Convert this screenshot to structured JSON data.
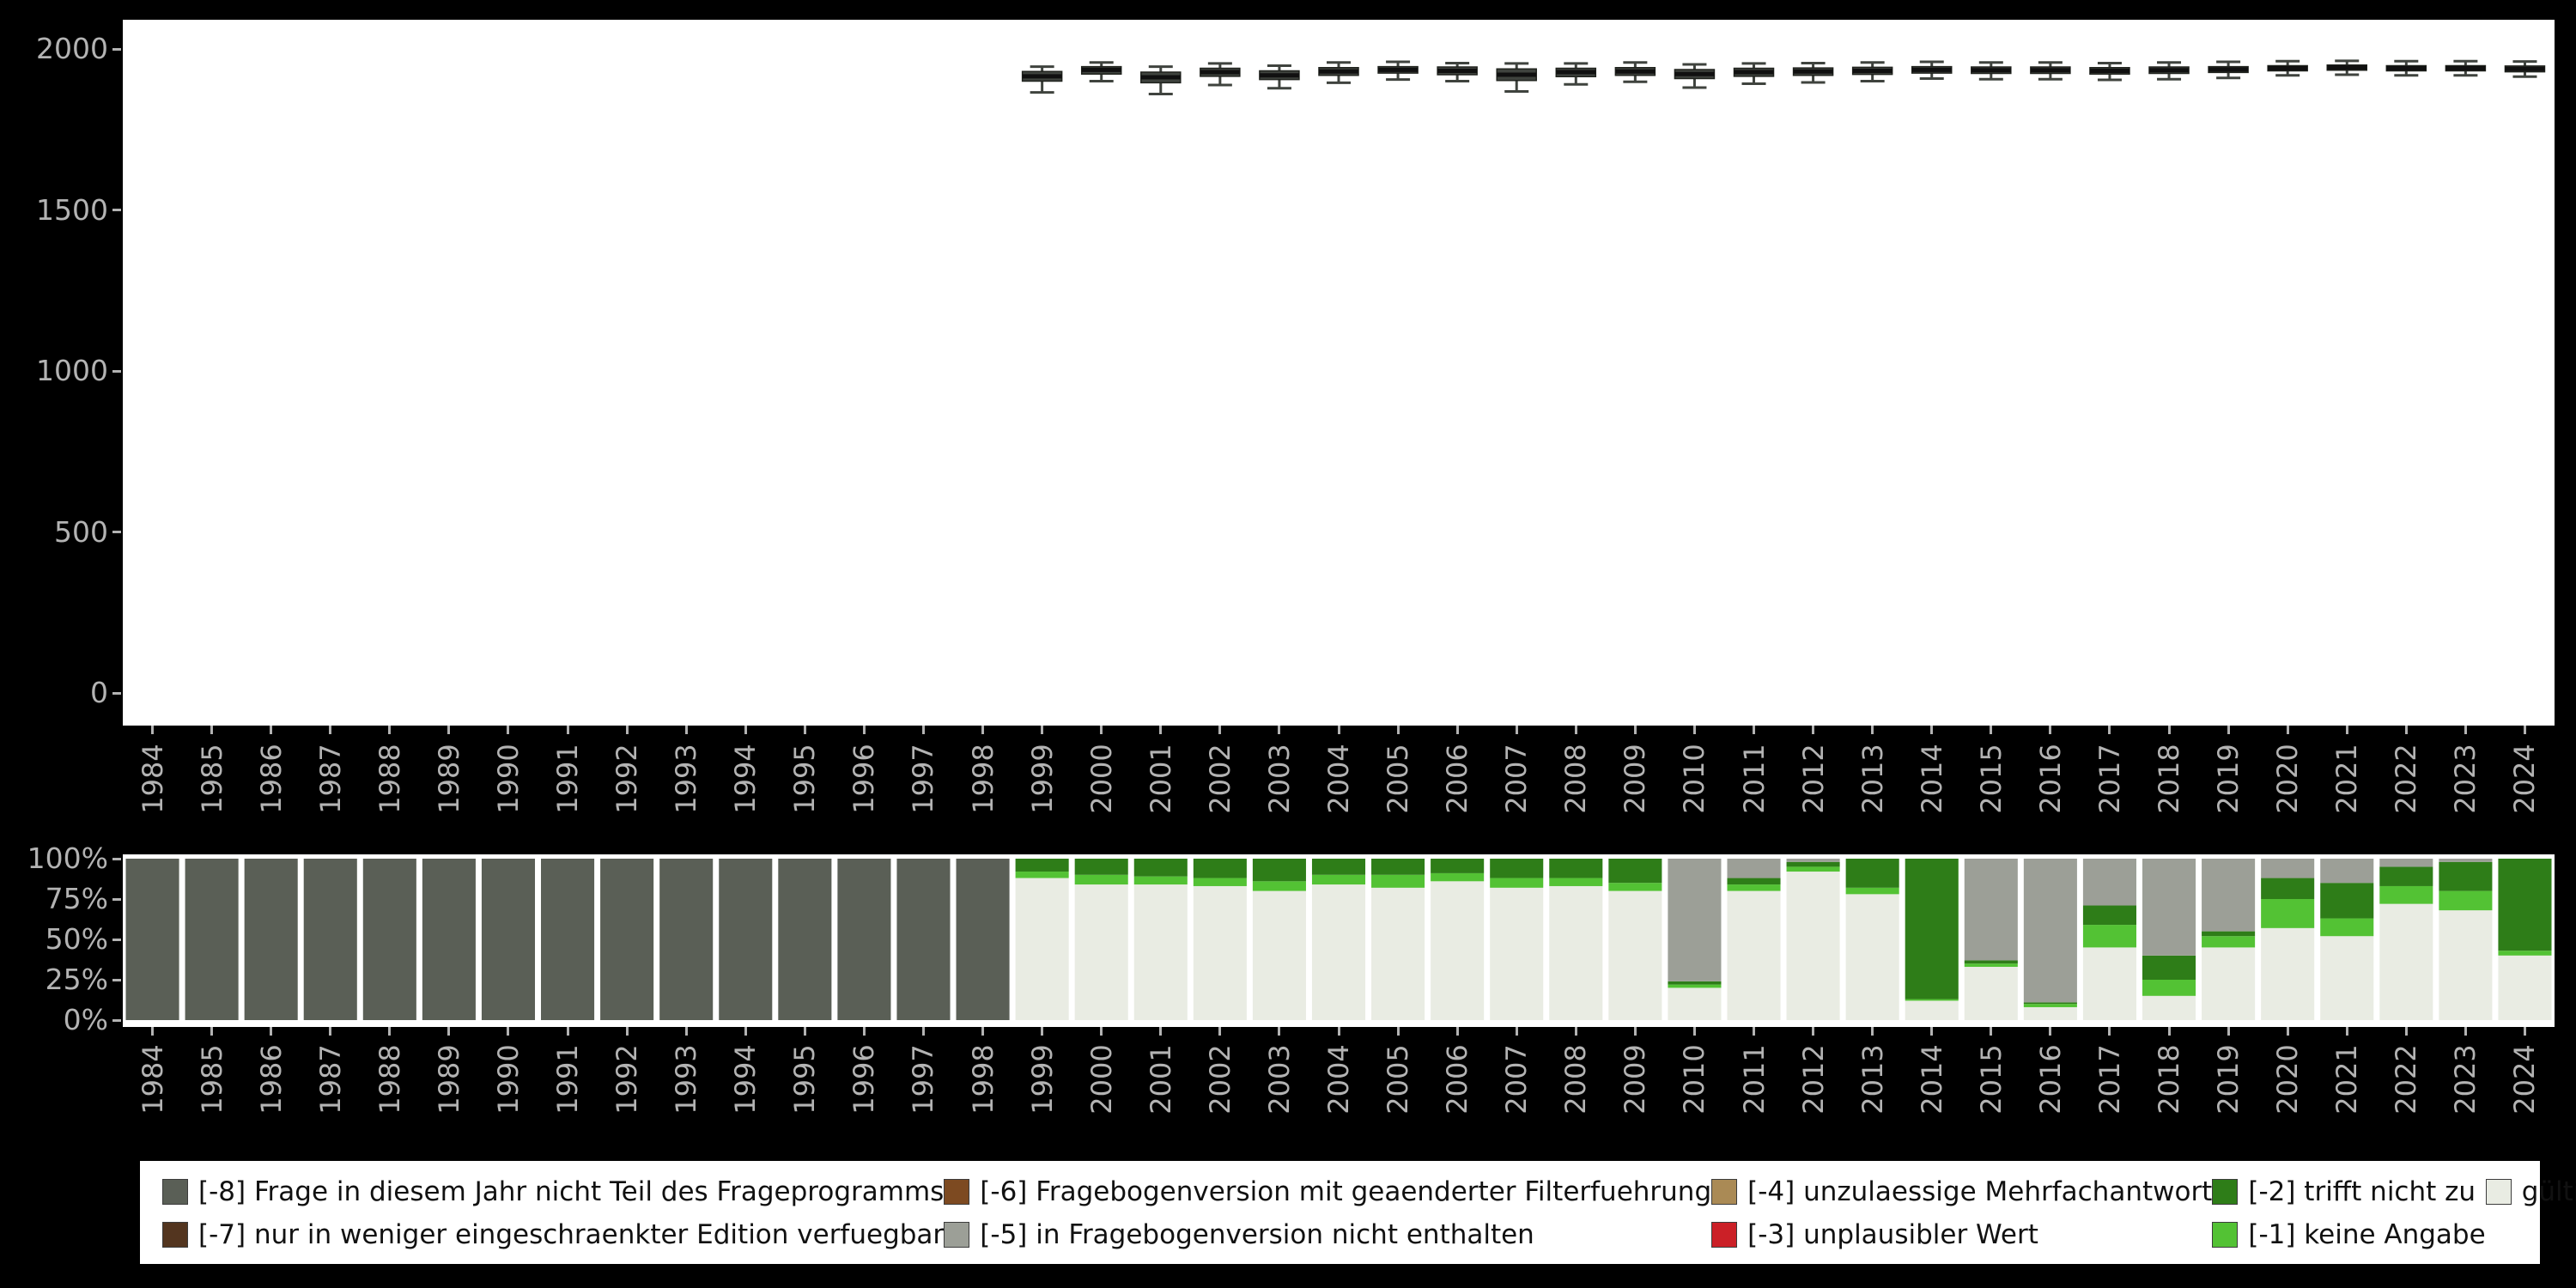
{
  "page": {
    "background": "#000000",
    "plot_background": "#ffffff",
    "tick_color": "#b3b3b3"
  },
  "chart_data": [
    {
      "type": "boxplot",
      "title": "",
      "xlabel": "",
      "ylabel": "",
      "ylim": [
        0,
        2090
      ],
      "grid": false,
      "yticks": [
        0,
        500,
        1000,
        1500,
        2000
      ],
      "years": [
        1984,
        1985,
        1986,
        1987,
        1988,
        1989,
        1990,
        1991,
        1992,
        1993,
        1994,
        1995,
        1996,
        1997,
        1998,
        1999,
        2000,
        2001,
        2002,
        2003,
        2004,
        2005,
        2006,
        2007,
        2008,
        2009,
        2010,
        2011,
        2012,
        2013,
        2014,
        2015,
        2016,
        2017,
        2018,
        2019,
        2020,
        2021,
        2022,
        2023,
        2024
      ],
      "box_color": "#3f433e",
      "median_color": "#101010",
      "boxes": [
        {
          "year": 1999,
          "low": 1865,
          "q1": 1900,
          "median": 1915,
          "q3": 1930,
          "high": 1945
        },
        {
          "year": 2000,
          "low": 1900,
          "q1": 1922,
          "median": 1935,
          "q3": 1945,
          "high": 1958
        },
        {
          "year": 2001,
          "low": 1860,
          "q1": 1895,
          "median": 1912,
          "q3": 1928,
          "high": 1945
        },
        {
          "year": 2002,
          "low": 1888,
          "q1": 1915,
          "median": 1928,
          "q3": 1940,
          "high": 1955
        },
        {
          "year": 2003,
          "low": 1878,
          "q1": 1905,
          "median": 1918,
          "q3": 1932,
          "high": 1948
        },
        {
          "year": 2004,
          "low": 1895,
          "q1": 1918,
          "median": 1930,
          "q3": 1942,
          "high": 1958
        },
        {
          "year": 2005,
          "low": 1905,
          "q1": 1925,
          "median": 1935,
          "q3": 1945,
          "high": 1960
        },
        {
          "year": 2006,
          "low": 1900,
          "q1": 1920,
          "median": 1932,
          "q3": 1944,
          "high": 1956
        },
        {
          "year": 2007,
          "low": 1868,
          "q1": 1902,
          "median": 1920,
          "q3": 1938,
          "high": 1955
        },
        {
          "year": 2008,
          "low": 1890,
          "q1": 1914,
          "median": 1928,
          "q3": 1940,
          "high": 1955
        },
        {
          "year": 2009,
          "low": 1898,
          "q1": 1918,
          "median": 1930,
          "q3": 1942,
          "high": 1958
        },
        {
          "year": 2010,
          "low": 1880,
          "q1": 1908,
          "median": 1922,
          "q3": 1936,
          "high": 1952
        },
        {
          "year": 2011,
          "low": 1892,
          "q1": 1915,
          "median": 1928,
          "q3": 1940,
          "high": 1955
        },
        {
          "year": 2012,
          "low": 1896,
          "q1": 1918,
          "median": 1930,
          "q3": 1941,
          "high": 1956
        },
        {
          "year": 2013,
          "low": 1900,
          "q1": 1921,
          "median": 1932,
          "q3": 1943,
          "high": 1958
        },
        {
          "year": 2014,
          "low": 1908,
          "q1": 1925,
          "median": 1935,
          "q3": 1945,
          "high": 1960
        },
        {
          "year": 2015,
          "low": 1906,
          "q1": 1924,
          "median": 1934,
          "q3": 1944,
          "high": 1958
        },
        {
          "year": 2016,
          "low": 1906,
          "q1": 1924,
          "median": 1934,
          "q3": 1944,
          "high": 1958
        },
        {
          "year": 2017,
          "low": 1904,
          "q1": 1922,
          "median": 1932,
          "q3": 1942,
          "high": 1956
        },
        {
          "year": 2018,
          "low": 1906,
          "q1": 1924,
          "median": 1934,
          "q3": 1944,
          "high": 1958
        },
        {
          "year": 2019,
          "low": 1910,
          "q1": 1927,
          "median": 1936,
          "q3": 1945,
          "high": 1960
        },
        {
          "year": 2020,
          "low": 1918,
          "q1": 1932,
          "median": 1940,
          "q3": 1948,
          "high": 1962
        },
        {
          "year": 2021,
          "low": 1920,
          "q1": 1934,
          "median": 1942,
          "q3": 1950,
          "high": 1963
        },
        {
          "year": 2022,
          "low": 1918,
          "q1": 1932,
          "median": 1940,
          "q3": 1948,
          "high": 1962
        },
        {
          "year": 2023,
          "low": 1918,
          "q1": 1932,
          "median": 1940,
          "q3": 1948,
          "high": 1962
        },
        {
          "year": 2024,
          "low": 1914,
          "q1": 1929,
          "median": 1938,
          "q3": 1947,
          "high": 1961
        }
      ]
    },
    {
      "type": "stacked-bar-percent",
      "title": "",
      "xlabel": "",
      "ylabel": "",
      "grid": false,
      "ytick_values": [
        100,
        75,
        50,
        25,
        0
      ],
      "ytick_labels": [
        "100%",
        "75%",
        "50%",
        "25%",
        "0%"
      ],
      "categories": [
        1984,
        1985,
        1986,
        1987,
        1988,
        1989,
        1990,
        1991,
        1992,
        1993,
        1994,
        1995,
        1996,
        1997,
        1998,
        1999,
        2000,
        2001,
        2002,
        2003,
        2004,
        2005,
        2006,
        2007,
        2008,
        2009,
        2010,
        2011,
        2012,
        2013,
        2014,
        2015,
        2016,
        2017,
        2018,
        2019,
        2020,
        2021,
        2022,
        2023,
        2024
      ],
      "series": [
        {
          "name": "gültige Observationen",
          "color": "#e9ece3",
          "values": [
            0,
            0,
            0,
            0,
            0,
            0,
            0,
            0,
            0,
            0,
            0,
            0,
            0,
            0,
            0,
            88,
            84,
            84,
            83,
            80,
            84,
            82,
            86,
            82,
            83,
            80,
            20,
            80,
            92,
            78,
            12,
            33,
            8,
            45,
            15,
            45,
            57,
            52,
            72,
            68,
            40
          ]
        },
        {
          "name": "[-1] keine Angabe",
          "color": "#53c234",
          "values": [
            0,
            0,
            0,
            0,
            0,
            0,
            0,
            0,
            0,
            0,
            0,
            0,
            0,
            0,
            0,
            4,
            6,
            5,
            5,
            6,
            6,
            8,
            5,
            6,
            5,
            5,
            2,
            4,
            3,
            4,
            1,
            2,
            2,
            14,
            10,
            7,
            18,
            11,
            11,
            12,
            3
          ]
        },
        {
          "name": "[-2] trifft nicht zu",
          "color": "#2e7d18",
          "values": [
            0,
            0,
            0,
            0,
            0,
            0,
            0,
            0,
            0,
            0,
            0,
            0,
            0,
            0,
            0,
            8,
            10,
            11,
            12,
            14,
            10,
            10,
            9,
            12,
            12,
            15,
            2,
            4,
            3,
            18,
            87,
            2,
            1,
            12,
            15,
            3,
            13,
            22,
            12,
            18,
            57
          ]
        },
        {
          "name": "[-3] unplausibler Wert",
          "color": "#cb2027",
          "values": [
            0,
            0,
            0,
            0,
            0,
            0,
            0,
            0,
            0,
            0,
            0,
            0,
            0,
            0,
            0,
            0,
            0,
            0,
            0,
            0,
            0,
            0,
            0,
            0,
            0,
            0,
            0,
            0,
            0,
            0,
            0,
            0,
            0,
            0,
            0,
            0,
            0,
            0,
            0,
            0,
            0
          ]
        },
        {
          "name": "[-4] unzulaessige Mehrfachantwort",
          "color": "#aa8a55",
          "values": [
            0,
            0,
            0,
            0,
            0,
            0,
            0,
            0,
            0,
            0,
            0,
            0,
            0,
            0,
            0,
            0,
            0,
            0,
            0,
            0,
            0,
            0,
            0,
            0,
            0,
            0,
            0,
            0,
            0,
            0,
            0,
            0,
            0,
            0,
            0,
            0,
            0,
            0,
            0,
            0,
            0
          ]
        },
        {
          "name": "[-5] in Fragebogenversion nicht enthalten",
          "color": "#9c9f97",
          "values": [
            0,
            0,
            0,
            0,
            0,
            0,
            0,
            0,
            0,
            0,
            0,
            0,
            0,
            0,
            0,
            0,
            0,
            0,
            0,
            0,
            0,
            0,
            0,
            0,
            0,
            0,
            76,
            12,
            2,
            0,
            0,
            63,
            89,
            29,
            60,
            45,
            12,
            15,
            5,
            2,
            0
          ]
        },
        {
          "name": "[-6] Fragebogenversion mit geaenderter Filterfuehrung",
          "color": "#7d4a21",
          "values": [
            0,
            0,
            0,
            0,
            0,
            0,
            0,
            0,
            0,
            0,
            0,
            0,
            0,
            0,
            0,
            0,
            0,
            0,
            0,
            0,
            0,
            0,
            0,
            0,
            0,
            0,
            0,
            0,
            0,
            0,
            0,
            0,
            0,
            0,
            0,
            0,
            0,
            0,
            0,
            0,
            0
          ]
        },
        {
          "name": "[-7] nur in weniger eingeschraenkter Edition verfuegbar",
          "color": "#53351f",
          "values": [
            0,
            0,
            0,
            0,
            0,
            0,
            0,
            0,
            0,
            0,
            0,
            0,
            0,
            0,
            0,
            0,
            0,
            0,
            0,
            0,
            0,
            0,
            0,
            0,
            0,
            0,
            0,
            0,
            0,
            0,
            0,
            0,
            0,
            0,
            0,
            0,
            0,
            0,
            0,
            0,
            0
          ]
        },
        {
          "name": "[-8] Frage in diesem Jahr nicht Teil des Frageprogramms",
          "color": "#5a5f56",
          "values": [
            100,
            100,
            100,
            100,
            100,
            100,
            100,
            100,
            100,
            100,
            100,
            100,
            100,
            100,
            100,
            0,
            0,
            0,
            0,
            0,
            0,
            0,
            0,
            0,
            0,
            0,
            0,
            0,
            0,
            0,
            0,
            0,
            0,
            0,
            0,
            0,
            0,
            0,
            0,
            0,
            0
          ]
        }
      ]
    }
  ],
  "legend": {
    "items": [
      {
        "label": "[-8] Frage in diesem Jahr nicht Teil des Frageprogramms",
        "color": "#5a5f56"
      },
      {
        "label": "[-7] nur in weniger eingeschraenkter Edition verfuegbar",
        "color": "#53351f"
      },
      {
        "label": "[-6] Fragebogenversion mit geaenderter Filterfuehrung",
        "color": "#7d4a21"
      },
      {
        "label": "[-5] in Fragebogenversion nicht enthalten",
        "color": "#9c9f97"
      },
      {
        "label": "[-4] unzulaessige Mehrfachantwort",
        "color": "#aa8a55"
      },
      {
        "label": "[-3] unplausibler Wert",
        "color": "#cb2027"
      },
      {
        "label": "[-2] trifft nicht zu",
        "color": "#2e7d18"
      },
      {
        "label": "[-1] keine Angabe",
        "color": "#53c234"
      },
      {
        "label": "gültige Observationen",
        "color": "#e9ece3"
      }
    ]
  }
}
